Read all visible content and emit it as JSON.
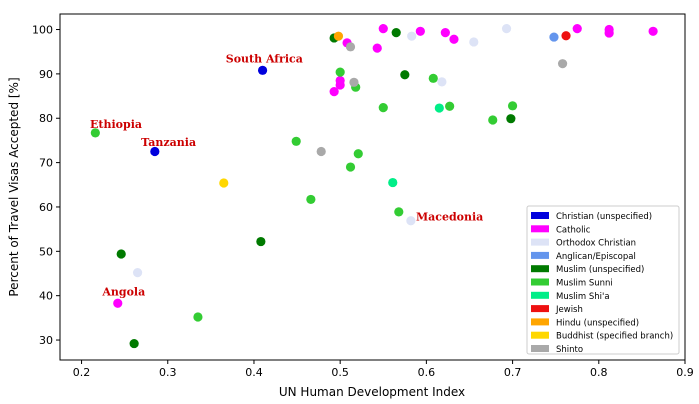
{
  "chart_data": {
    "type": "scatter",
    "title": "",
    "xlabel": "UN Human Development Index",
    "ylabel": "Percent of Travel Visas Accepted [%]",
    "xlim": [
      0.175,
      0.9
    ],
    "ylim": [
      25.5,
      103.5
    ],
    "xticks": [
      "0.2",
      "0.3",
      "0.4",
      "0.5",
      "0.6",
      "0.7",
      "0.8",
      "0.9"
    ],
    "yticks": [
      "30",
      "40",
      "50",
      "60",
      "70",
      "80",
      "90",
      "100"
    ],
    "grid": false,
    "legend_position": "lower-right",
    "series": [
      {
        "name": "Christian (unspecified)",
        "color": "#0000dd",
        "points": [
          [
            0.41,
            90.8
          ],
          [
            0.285,
            72.5
          ]
        ]
      },
      {
        "name": "Catholic",
        "color": "#ff00ff",
        "points": [
          [
            0.55,
            100.2
          ],
          [
            0.593,
            99.6
          ],
          [
            0.622,
            99.3
          ],
          [
            0.632,
            97.8
          ],
          [
            0.775,
            100.2
          ],
          [
            0.812,
            100.0
          ],
          [
            0.812,
            99.2
          ],
          [
            0.863,
            99.6
          ],
          [
            0.508,
            97.0
          ],
          [
            0.543,
            95.8
          ],
          [
            0.5,
            88.5
          ],
          [
            0.5,
            87.5
          ],
          [
            0.493,
            86.0
          ],
          [
            0.242,
            38.3
          ]
        ]
      },
      {
        "name": "Orthodox Christian",
        "color": "#dde3f6",
        "points": [
          [
            0.583,
            98.5
          ],
          [
            0.618,
            88.2
          ],
          [
            0.655,
            97.2
          ],
          [
            0.693,
            100.2
          ],
          [
            0.582,
            56.9
          ],
          [
            0.265,
            45.2
          ]
        ]
      },
      {
        "name": "Anglican/Episcopal",
        "color": "#6495ed",
        "points": [
          [
            0.748,
            98.3
          ]
        ]
      },
      {
        "name": "Muslim (unspecified)",
        "color": "#007a00",
        "points": [
          [
            0.493,
            98.1
          ],
          [
            0.565,
            99.3
          ],
          [
            0.575,
            89.8
          ],
          [
            0.698,
            79.9
          ],
          [
            0.246,
            49.4
          ],
          [
            0.408,
            52.2
          ],
          [
            0.261,
            29.2
          ]
        ]
      },
      {
        "name": "Muslim Sunni",
        "color": "#33cc33",
        "points": [
          [
            0.5,
            90.4
          ],
          [
            0.518,
            87.0
          ],
          [
            0.55,
            82.4
          ],
          [
            0.608,
            89.0
          ],
          [
            0.627,
            82.7
          ],
          [
            0.677,
            79.6
          ],
          [
            0.7,
            82.8
          ],
          [
            0.216,
            76.7
          ],
          [
            0.449,
            74.8
          ],
          [
            0.521,
            72.0
          ],
          [
            0.512,
            69.0
          ],
          [
            0.466,
            61.7
          ],
          [
            0.568,
            58.9
          ],
          [
            0.335,
            35.2
          ]
        ]
      },
      {
        "name": "Muslim Shi'a",
        "color": "#00ee88",
        "points": [
          [
            0.615,
            82.3
          ],
          [
            0.561,
            65.5
          ]
        ]
      },
      {
        "name": "Jewish",
        "color": "#ee1111",
        "points": [
          [
            0.762,
            98.6
          ]
        ]
      },
      {
        "name": "Hindu (unspecified)",
        "color": "#ffa500",
        "points": [
          [
            0.498,
            98.5
          ]
        ]
      },
      {
        "name": "Buddhist (specified branch)",
        "color": "#ffd700",
        "points": [
          [
            0.365,
            65.4
          ]
        ]
      },
      {
        "name": "Shinto",
        "color": "#a9a9a9",
        "points": [
          [
            0.512,
            96.1
          ],
          [
            0.516,
            88.1
          ],
          [
            0.478,
            72.5
          ],
          [
            0.758,
            92.3
          ]
        ]
      }
    ],
    "annotations": [
      {
        "text": "South Africa",
        "x": 0.412,
        "y": 92.6
      },
      {
        "text": "Ethiopia",
        "x": 0.24,
        "y": 77.8
      },
      {
        "text": "Tanzania",
        "x": 0.301,
        "y": 73.7
      },
      {
        "text": "Macedonia",
        "x": 0.627,
        "y": 56.9
      },
      {
        "text": "Angola",
        "x": 0.249,
        "y": 40.0
      }
    ]
  }
}
